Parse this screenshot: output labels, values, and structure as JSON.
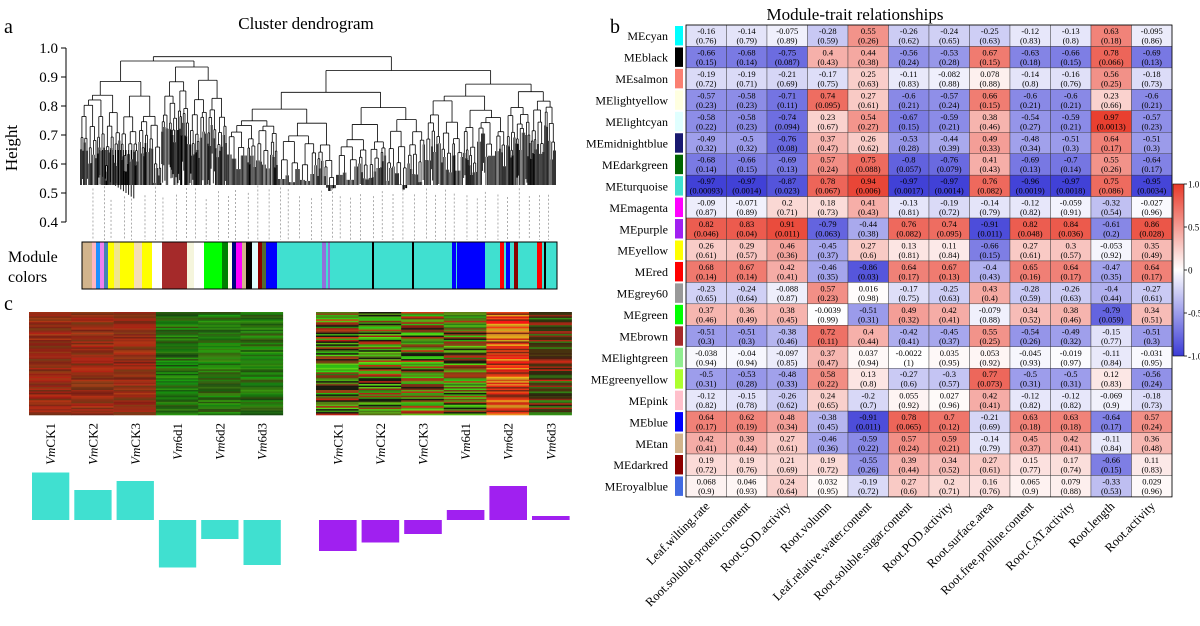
{
  "panel_labels": {
    "a": "a",
    "b": "b",
    "c": "c"
  },
  "chart_data": [
    {
      "type": "dendrogram",
      "title": "Cluster dendrogram",
      "ylabel": "Height",
      "ylim": [
        0.4,
        1.0
      ],
      "yticks": [
        "0.4",
        "0.5",
        "0.6",
        "0.7",
        "0.8",
        "0.9",
        "1.0"
      ],
      "color_bar_label_1": "Module",
      "color_bar_label_2": "colors",
      "module_color_bar": [
        "#d2b48c",
        "#ffb6c1",
        "#1e90ff",
        "#ee82ee",
        "#4682b4",
        "#ffff00",
        "#f0e68c",
        "#ffff00",
        "#a52a2a",
        "#a52a2a",
        "#ffffff",
        "#00ff00",
        "#008000",
        "#ffffe0",
        "#000080",
        "#ff00ff",
        "#e0ffff",
        "#8b0000",
        "#556b2f",
        "#0000ff",
        "#40e0d0",
        "#40e0d0",
        "#9370db",
        "#40e0d0",
        "#000000",
        "#40e0d0",
        "#40e0d0",
        "#0000ff",
        "#40e0d0",
        "#ff0000",
        "#40e0d0",
        "#8b0000",
        "#40e0d0",
        "#ff0000",
        "#40e0d0"
      ]
    },
    {
      "type": "heatmap",
      "title": "Module-trait relationships",
      "rows": [
        "MEcyan",
        "MEblack",
        "MEsalmon",
        "MElightyellow",
        "MElightcyan",
        "MEmidnightblue",
        "MEdarkgreen",
        "MEturquoise",
        "MEmagenta",
        "MEpurple",
        "MEyellow",
        "MEred",
        "MEgrey60",
        "MEgreen",
        "MEbrown",
        "MElightgreen",
        "MEgreenyellow",
        "MEpink",
        "MEblue",
        "MEtan",
        "MEdarkred",
        "MEroyalblue"
      ],
      "row_colors": [
        "#00ffff",
        "#000000",
        "#fa8072",
        "#ffffe0",
        "#e0ffff",
        "#191970",
        "#006400",
        "#40e0d0",
        "#ff00ff",
        "#a020f0",
        "#ffff00",
        "#ff0000",
        "#999999",
        "#00ff00",
        "#a52a2a",
        "#90ee90",
        "#adff2f",
        "#ffc0cb",
        "#0000ff",
        "#d2b48c",
        "#8b0000",
        "#4169e1"
      ],
      "columns": [
        "Leaf.wilting.rate",
        "Root.soluble.protein.content",
        "Root.SOD.activity",
        "Root.volumn",
        "Leaf.relative.water.content",
        "Root.soluble.sugar.content",
        "Root.POD.activity",
        "Root.surface.area",
        "Root.free.proline.content",
        "Root.CAT.activity",
        "Root.length",
        "Root.activity"
      ],
      "values": [
        [
          "-0.16",
          "-0.14",
          "-0.075",
          "-0.28",
          "0.55",
          "-0.26",
          "-0.24",
          "-0.25",
          "-0.12",
          "-0.13",
          "0.63",
          "-0.095"
        ],
        [
          "-0.66",
          "-0.68",
          "-0.75",
          "0.4",
          "0.44",
          "-0.56",
          "-0.53",
          "0.67",
          "-0.63",
          "-0.66",
          "0.78",
          "-0.69"
        ],
        [
          "-0.19",
          "-0.19",
          "-0.21",
          "-0.17",
          "0.25",
          "-0.11",
          "-0.082",
          "0.078",
          "-0.14",
          "-0.16",
          "0.56",
          "-0.18"
        ],
        [
          "-0.57",
          "-0.58",
          "-0.71",
          "0.74",
          "0.27",
          "-0.6",
          "-0.57",
          "0.66",
          "-0.6",
          "-0.6",
          "0.23",
          "-0.6"
        ],
        [
          "-0.58",
          "-0.58",
          "-0.74",
          "0.23",
          "0.54",
          "-0.67",
          "-0.59",
          "0.38",
          "-0.54",
          "-0.59",
          "0.97",
          "-0.57"
        ],
        [
          "-0.49",
          "-0.5",
          "-0.76",
          "0.37",
          "0.26",
          "-0.53",
          "-0.44",
          "0.49",
          "-0.48",
          "-0.51",
          "0.64",
          "-0.51"
        ],
        [
          "-0.68",
          "-0.66",
          "-0.69",
          "0.57",
          "0.75",
          "-0.8",
          "-0.76",
          "0.41",
          "-0.69",
          "-0.7",
          "0.55",
          "-0.64"
        ],
        [
          "-0.97",
          "-0.97",
          "-0.87",
          "0.78",
          "0.94",
          "-0.97",
          "-0.97",
          "0.76",
          "-0.96",
          "-0.97",
          "0.75",
          "-0.95"
        ],
        [
          "-0.09",
          "-0.071",
          "0.2",
          "0.18",
          "0.41",
          "-0.13",
          "-0.19",
          "-0.14",
          "-0.12",
          "-0.059",
          "-0.32",
          "-0.027"
        ],
        [
          "0.82",
          "0.83",
          "0.91",
          "-0.79",
          "-0.44",
          "0.76",
          "0.74",
          "-0.91",
          "0.82",
          "0.84",
          "-0.61",
          "0.86"
        ],
        [
          "0.26",
          "0.29",
          "0.46",
          "-0.45",
          "0.27",
          "0.13",
          "0.11",
          "-0.66",
          "0.27",
          "0.3",
          "-0.053",
          "0.35"
        ],
        [
          "0.68",
          "0.67",
          "0.42",
          "-0.46",
          "-0.86",
          "0.64",
          "0.67",
          "-0.4",
          "0.65",
          "0.64",
          "-0.47",
          "0.64"
        ],
        [
          "-0.23",
          "-0.24",
          "-0.088",
          "0.57",
          "0.016",
          "-0.17",
          "-0.25",
          "0.43",
          "-0.28",
          "-0.26",
          "-0.4",
          "-0.27"
        ],
        [
          "0.37",
          "0.36",
          "0.38",
          "-0.0039",
          "-0.51",
          "0.49",
          "0.42",
          "-0.079",
          "0.34",
          "0.38",
          "-0.79",
          "0.34"
        ],
        [
          "-0.51",
          "-0.51",
          "-0.38",
          "0.72",
          "0.4",
          "-0.42",
          "-0.45",
          "0.55",
          "-0.54",
          "-0.49",
          "-0.15",
          "-0.51"
        ],
        [
          "-0.038",
          "-0.04",
          "-0.097",
          "0.37",
          "0.037",
          "-0.0022",
          "0.035",
          "0.053",
          "-0.045",
          "-0.019",
          "-0.11",
          "-0.031"
        ],
        [
          "-0.5",
          "-0.53",
          "-0.48",
          "0.58",
          "0.13",
          "-0.27",
          "-0.3",
          "0.77",
          "-0.5",
          "-0.5",
          "0.12",
          "-0.56"
        ],
        [
          "-0.12",
          "-0.15",
          "-0.26",
          "0.24",
          "-0.2",
          "0.055",
          "0.027",
          "0.42",
          "-0.12",
          "-0.12",
          "-0.069",
          "-0.18"
        ],
        [
          "0.64",
          "0.62",
          "0.48",
          "-0.38",
          "-0.91",
          "0.78",
          "0.7",
          "-0.21",
          "0.63",
          "0.63",
          "-0.64",
          "0.57"
        ],
        [
          "0.42",
          "0.39",
          "0.27",
          "-0.46",
          "-0.59",
          "0.57",
          "0.59",
          "-0.14",
          "0.45",
          "0.42",
          "-0.11",
          "0.36"
        ],
        [
          "0.19",
          "0.19",
          "0.21",
          "0.19",
          "-0.55",
          "0.39",
          "0.34",
          "0.27",
          "0.15",
          "0.17",
          "-0.66",
          "0.11"
        ],
        [
          "0.068",
          "0.046",
          "0.24",
          "0.032",
          "-0.19",
          "0.27",
          "0.2",
          "0.16",
          "0.065",
          "0.079",
          "-0.33",
          "0.029"
        ]
      ],
      "pvalues": [
        [
          "(0.76)",
          "(0.79)",
          "(0.89)",
          "(0.59)",
          "(0.26)",
          "(0.62)",
          "(0.65)",
          "(0.63)",
          "(0.83)",
          "(0.8)",
          "(0.18)",
          "(0.86)"
        ],
        [
          "(0.15)",
          "(0.14)",
          "(0.087)",
          "(0.43)",
          "(0.38)",
          "(0.24)",
          "(0.28)",
          "(0.15)",
          "(0.18)",
          "(0.15)",
          "(0.066)",
          "(0.13)"
        ],
        [
          "(0.72)",
          "(0.71)",
          "(0.69)",
          "(0.75)",
          "(0.63)",
          "(0.83)",
          "(0.88)",
          "(0.88)",
          "(0.8)",
          "(0.76)",
          "(0.25)",
          "(0.73)"
        ],
        [
          "(0.23)",
          "(0.23)",
          "(0.11)",
          "(0.095)",
          "(0.61)",
          "(0.21)",
          "(0.24)",
          "(0.15)",
          "(0.21)",
          "(0.21)",
          "(0.66)",
          "(0.21)"
        ],
        [
          "(0.22)",
          "(0.23)",
          "(0.094)",
          "(0.67)",
          "(0.27)",
          "(0.15)",
          "(0.21)",
          "(0.46)",
          "(0.27)",
          "(0.21)",
          "(0.0013)",
          "(0.23)"
        ],
        [
          "(0.32)",
          "(0.32)",
          "(0.08)",
          "(0.47)",
          "(0.62)",
          "(0.28)",
          "(0.39)",
          "(0.33)",
          "(0.34)",
          "(0.3)",
          "(0.17)",
          "(0.3)"
        ],
        [
          "(0.14)",
          "(0.15)",
          "(0.13)",
          "(0.24)",
          "(0.088)",
          "(0.057)",
          "(0.079)",
          "(0.43)",
          "(0.13)",
          "(0.14)",
          "(0.26)",
          "(0.17)"
        ],
        [
          "(0.00093)",
          "(0.0014)",
          "(0.023)",
          "(0.067)",
          "(0.006)",
          "(0.0017)",
          "(0.0014)",
          "(0.082)",
          "(0.0019)",
          "(0.0018)",
          "(0.086)",
          "(0.0034)"
        ],
        [
          "(0.87)",
          "(0.89)",
          "(0.71)",
          "(0.73)",
          "(0.43)",
          "(0.81)",
          "(0.72)",
          "(0.79)",
          "(0.82)",
          "(0.91)",
          "(0.54)",
          "(0.96)"
        ],
        [
          "(0.046)",
          "(0.04)",
          "(0.011)",
          "(0.063)",
          "(0.38)",
          "(0.082)",
          "(0.095)",
          "(0.011)",
          "(0.048)",
          "(0.036)",
          "(0.2)",
          "(0.028)"
        ],
        [
          "(0.61)",
          "(0.57)",
          "(0.36)",
          "(0.37)",
          "(0.6)",
          "(0.81)",
          "(0.84)",
          "(0.15)",
          "(0.61)",
          "(0.57)",
          "(0.92)",
          "(0.49)"
        ],
        [
          "(0.14)",
          "(0.14)",
          "(0.41)",
          "(0.35)",
          "(0.03)",
          "(0.17)",
          "(0.13)",
          "(0.43)",
          "(0.16)",
          "(0.17)",
          "(0.35)",
          "(0.17)"
        ],
        [
          "(0.65)",
          "(0.64)",
          "(0.87)",
          "(0.23)",
          "(0.98)",
          "(0.75)",
          "(0.63)",
          "(0.4)",
          "(0.59)",
          "(0.63)",
          "(0.44)",
          "(0.61)"
        ],
        [
          "(0.46)",
          "(0.49)",
          "(0.45)",
          "(0.99)",
          "(0.31)",
          "(0.32)",
          "(0.41)",
          "(0.88)",
          "(0.52)",
          "(0.46)",
          "(0.059)",
          "(0.51)"
        ],
        [
          "(0.3)",
          "(0.3)",
          "(0.46)",
          "(0.11)",
          "(0.44)",
          "(0.41)",
          "(0.37)",
          "(0.25)",
          "(0.26)",
          "(0.32)",
          "(0.77)",
          "(0.3)"
        ],
        [
          "(0.94)",
          "(0.94)",
          "(0.85)",
          "(0.47)",
          "(0.94)",
          "(1)",
          "(0.95)",
          "(0.92)",
          "(0.93)",
          "(0.97)",
          "(0.84)",
          "(0.95)"
        ],
        [
          "(0.31)",
          "(0.28)",
          "(0.33)",
          "(0.22)",
          "(0.8)",
          "(0.6)",
          "(0.57)",
          "(0.073)",
          "(0.31)",
          "(0.31)",
          "(0.83)",
          "(0.24)"
        ],
        [
          "(0.82)",
          "(0.78)",
          "(0.62)",
          "(0.65)",
          "(0.7)",
          "(0.92)",
          "(0.96)",
          "(0.41)",
          "(0.82)",
          "(0.82)",
          "(0.9)",
          "(0.73)"
        ],
        [
          "(0.17)",
          "(0.19)",
          "(0.34)",
          "(0.45)",
          "(0.011)",
          "(0.065)",
          "(0.12)",
          "(0.69)",
          "(0.18)",
          "(0.18)",
          "(0.17)",
          "(0.24)"
        ],
        [
          "(0.41)",
          "(0.44)",
          "(0.61)",
          "(0.36)",
          "(0.22)",
          "(0.24)",
          "(0.21)",
          "(0.79)",
          "(0.37)",
          "(0.41)",
          "(0.84)",
          "(0.48)"
        ],
        [
          "(0.72)",
          "(0.76)",
          "(0.69)",
          "(0.72)",
          "(0.26)",
          "(0.44)",
          "(0.52)",
          "(0.61)",
          "(0.77)",
          "(0.74)",
          "(0.15)",
          "(0.83)"
        ],
        [
          "(0.9)",
          "(0.93)",
          "(0.64)",
          "(0.95)",
          "(0.72)",
          "(0.6)",
          "(0.71)",
          "(0.76)",
          "(0.9)",
          "(0.88)",
          "(0.53)",
          "(0.96)"
        ]
      ],
      "colorbar_ticks": [
        "1.0",
        "0.5",
        "0",
        "-0.5",
        "-1.0"
      ],
      "color_scale": {
        "low": "#3b3bd6",
        "mid": "#ffffff",
        "high": "#e83a2a"
      }
    },
    {
      "type": "heatmap",
      "panel": "c",
      "blocks": [
        {
          "name": "turquoise",
          "samples": [
            "VmCK1",
            "VmCK2",
            "VmCK3",
            "Vm6d1",
            "Vm6d2",
            "Vm6d3"
          ],
          "sample_prefix": "Vm",
          "sample_suffix": [
            "CK1",
            "CK2",
            "CK3",
            "6d1",
            "6d2",
            "6d3"
          ],
          "column_tone": [
            "red",
            "red",
            "red",
            "green",
            "green",
            "green"
          ],
          "eigengene": [
            0.95,
            0.6,
            0.78,
            -0.95,
            -0.38,
            -0.9
          ],
          "bar_color": "#40e0d0"
        },
        {
          "name": "purple",
          "samples": [
            "VmCK1",
            "VmCK2",
            "VmCK3",
            "Vm6d1",
            "Vm6d2",
            "Vm6d3"
          ],
          "sample_prefix": "Vm",
          "sample_suffix": [
            "CK1",
            "CK2",
            "CK3",
            "6d1",
            "6d2",
            "6d3"
          ],
          "column_tone": [
            "mixed",
            "mixed",
            "mixed",
            "mixed",
            "red",
            "dark"
          ],
          "eigengene": [
            -0.62,
            -0.45,
            -0.28,
            0.2,
            0.68,
            0.08
          ],
          "bar_color": "#a020f0"
        }
      ]
    }
  ]
}
